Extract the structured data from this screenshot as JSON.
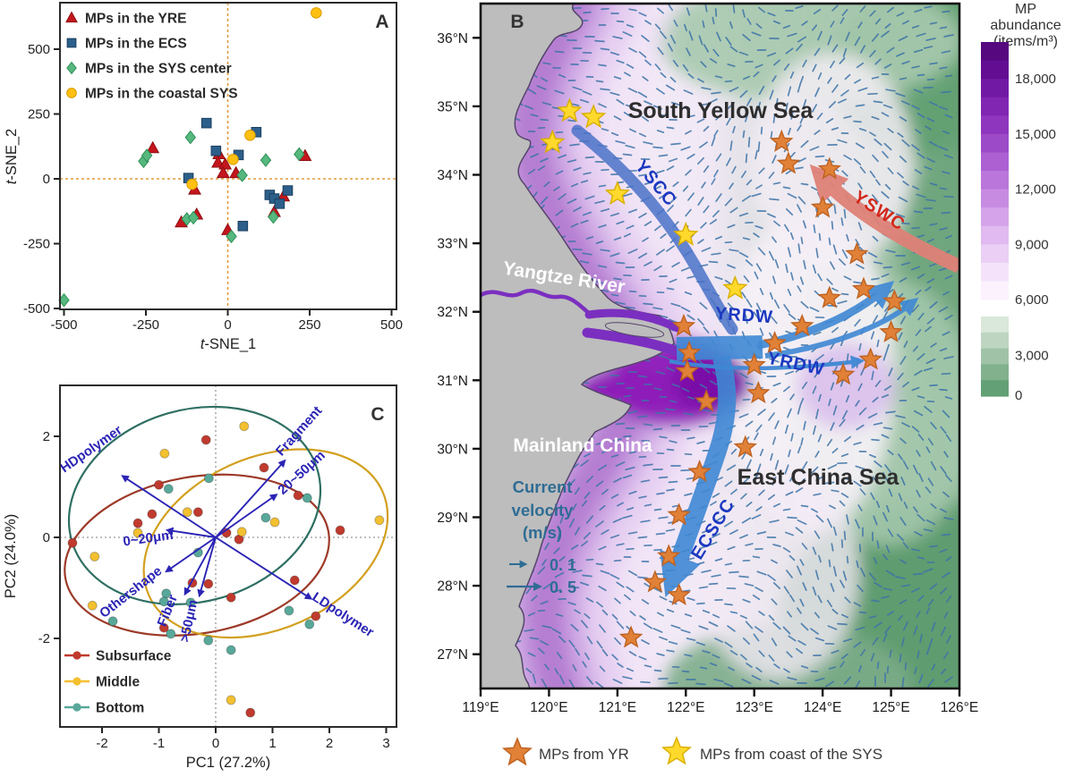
{
  "panels": {
    "a": "A",
    "b": "B",
    "c": "C"
  },
  "palette": {
    "axis": "#222222",
    "current_cold": "#3F88D4",
    "current_cold_band": "#4A72C8",
    "current_warm": "#DF8178",
    "current_label_cold": "#1C39C0",
    "current_label_warm": "#D3281C",
    "land": "#BDBDBD",
    "land_outline": "#55456B",
    "vector_field": "#3E74A8",
    "river": "#7B2FC0",
    "velocity_legend": "#2F6C94",
    "star_yr": "#E08137",
    "star_yr_edge": "#BE6222",
    "star_sys": "#FFD92B",
    "star_sys_edge": "#D9AE00",
    "sea_label": "#2E2E2E",
    "land_label": "#FFFFFF"
  },
  "chart_data": [
    {
      "id": "A",
      "type": "scatter",
      "xlabel": "t-SNE_1",
      "ylabel": "t-SNE_2",
      "xticks": [
        -500,
        -250,
        0,
        250,
        500
      ],
      "yticks": [
        500,
        250,
        0,
        -250,
        -500
      ],
      "reference_lines": {
        "x": 0,
        "y": 0,
        "style": "dashed",
        "color": "#E39A3B"
      },
      "series": [
        {
          "name": "MPs in the YRE",
          "marker": "triangle",
          "color": "#C4161C",
          "edge": "#8E0E13",
          "points": [
            [
              -229,
              118
            ],
            [
              -27,
              95
            ],
            [
              -30,
              62
            ],
            [
              -8,
              55
            ],
            [
              -14,
              22
            ],
            [
              25,
              22
            ],
            [
              -101,
              -42
            ],
            [
              -95,
              -138
            ],
            [
              -142,
              -168
            ],
            [
              0,
              -198
            ],
            [
              170,
              -68
            ],
            [
              142,
              -128
            ],
            [
              236,
              88
            ]
          ]
        },
        {
          "name": "MPs in the ECS",
          "marker": "square",
          "color": "#2C5F8A",
          "edge": "#1C3F60",
          "points": [
            [
              -65,
              215
            ],
            [
              -36,
              108
            ],
            [
              33,
              92
            ],
            [
              87,
              180
            ],
            [
              -120,
              3
            ],
            [
              128,
              -62
            ],
            [
              142,
              -76
            ],
            [
              158,
              -96
            ],
            [
              183,
              -45
            ],
            [
              46,
              -182
            ]
          ]
        },
        {
          "name": "MPs in the SYS center",
          "marker": "diamond",
          "color": "#56B87E",
          "edge": "#2F8F57",
          "points": [
            [
              -114,
              160
            ],
            [
              -257,
              68
            ],
            [
              -247,
              90
            ],
            [
              116,
              72
            ],
            [
              218,
              95
            ],
            [
              44,
              14
            ],
            [
              -125,
              -155
            ],
            [
              -105,
              -150
            ],
            [
              139,
              -147
            ],
            [
              11,
              -222
            ],
            [
              -500,
              -468
            ]
          ]
        },
        {
          "name": "MPs in the coastal SYS",
          "marker": "circle",
          "color": "#FFC011",
          "edge": "#D99C00",
          "points": [
            [
              270,
              640
            ],
            [
              68,
              168
            ],
            [
              16,
              75
            ],
            [
              -109,
              -21
            ]
          ]
        }
      ]
    },
    {
      "id": "B",
      "type": "map",
      "lon_range": [
        119,
        126
      ],
      "lat_range": [
        26.5,
        36.5
      ],
      "lon_ticks": [
        "119°E",
        "120°E",
        "121°E",
        "122°E",
        "123°E",
        "124°E",
        "125°E",
        "126°E"
      ],
      "lat_ticks": [
        "36°N",
        "35°N",
        "34°N",
        "33°N",
        "32°N",
        "31°N",
        "30°N",
        "29°N",
        "28°N",
        "27°N"
      ],
      "sea_labels": [
        {
          "text": "South Yellow Sea"
        },
        {
          "text": "East China Sea"
        }
      ],
      "land_labels": [
        {
          "text": "Mainland China"
        },
        {
          "text": "Yangtze River"
        }
      ],
      "currents": [
        {
          "name": "YSCC",
          "type": "cold"
        },
        {
          "name": "YSWC",
          "type": "warm"
        },
        {
          "name": "YRDW",
          "type": "cold"
        },
        {
          "name": "YRDW",
          "type": "cold"
        },
        {
          "name": "ECSCC",
          "type": "cold"
        }
      ],
      "velocity_legend": {
        "title_lines": [
          "Current",
          "velocity",
          "(m/s)"
        ],
        "items": [
          {
            "label": "0. 1"
          },
          {
            "label": "0. 5"
          }
        ]
      },
      "star_legend": [
        {
          "label": "MPs from YR"
        },
        {
          "label": "MPs from coast of the SYS"
        }
      ],
      "stars_yr_points": [
        [
          123.4,
          34.48
        ],
        [
          123.5,
          34.16
        ],
        [
          124.1,
          34.08
        ],
        [
          124.0,
          33.52
        ],
        [
          124.5,
          32.84
        ],
        [
          124.6,
          32.33
        ],
        [
          124.1,
          32.2
        ],
        [
          125.05,
          32.15
        ],
        [
          125.0,
          31.7
        ],
        [
          124.7,
          31.3
        ],
        [
          124.3,
          31.08
        ],
        [
          121.97,
          31.79
        ],
        [
          122.05,
          31.4
        ],
        [
          122.02,
          31.13
        ],
        [
          122.3,
          30.69
        ],
        [
          123.0,
          31.22
        ],
        [
          123.3,
          31.54
        ],
        [
          123.7,
          31.79
        ],
        [
          123.06,
          30.81
        ],
        [
          122.87,
          30.02
        ],
        [
          122.2,
          29.66
        ],
        [
          121.9,
          29.03
        ],
        [
          121.75,
          28.43
        ],
        [
          121.55,
          28.05
        ],
        [
          121.9,
          27.86
        ],
        [
          121.2,
          27.24
        ]
      ],
      "stars_sys_points": [
        [
          120.3,
          34.93
        ],
        [
          120.65,
          34.84
        ],
        [
          120.05,
          34.47
        ],
        [
          121.0,
          33.72
        ],
        [
          122.0,
          33.12
        ],
        [
          122.72,
          32.34
        ]
      ],
      "colorbar": {
        "title_lines": [
          "MP",
          "abundance",
          "(items/m³)"
        ],
        "purple_range": [
          6000,
          20000
        ],
        "purple_labels": [
          [
            18000,
            "18,000"
          ],
          [
            15000,
            "15,000"
          ],
          [
            12000,
            "12,000"
          ],
          [
            9000,
            "9,000"
          ],
          [
            6000,
            "6,000"
          ]
        ],
        "purple_colors": [
          "#56087E",
          "#630E92",
          "#7119A4",
          "#8026B2",
          "#8F36BE",
          "#9D4AC8",
          "#AC60D2",
          "#BA76DA",
          "#C78CE2",
          "#D4A3EA",
          "#E0BAF0",
          "#EBCFF5",
          "#F4E2FA",
          "#FBF2FD"
        ],
        "green_range": [
          0,
          6000
        ],
        "green_labels": [
          [
            3000,
            "3,000"
          ],
          [
            0,
            "0"
          ]
        ],
        "green_colors": [
          "#DAE7DB",
          "#BED5C2",
          "#A0C3A8",
          "#82B18E",
          "#63A075"
        ]
      }
    },
    {
      "id": "C",
      "type": "pca-biplot",
      "xlabel": "PC1 (27.2%)",
      "ylabel": "PC2 (24.0%)",
      "xticks": [
        -2,
        -1,
        0,
        1,
        2,
        3
      ],
      "yticks": [
        2,
        0,
        -2
      ],
      "arrow_color": "#2B24B4",
      "groups": [
        {
          "name": "Subsurface",
          "color": "#C03A2E",
          "ellipse_color": "#9C3A28",
          "ellipse": {
            "cx": -0.33,
            "cy": -0.35,
            "rx": 2.35,
            "ry": 1.55,
            "rotation": -10
          },
          "points": [
            [
              -0.17,
              1.93
            ],
            [
              0.85,
              1.38
            ],
            [
              -1.0,
              1.04
            ],
            [
              1.45,
              0.83
            ],
            [
              -0.31,
              0.5
            ],
            [
              -1.12,
              0.46
            ],
            [
              -1.37,
              0.28
            ],
            [
              2.19,
              0.14
            ],
            [
              -2.52,
              -0.11
            ],
            [
              0.41,
              -0.04
            ],
            [
              0.19,
              0.09
            ],
            [
              -0.41,
              -0.9
            ],
            [
              -0.13,
              -0.92
            ],
            [
              0.27,
              -1.19
            ],
            [
              1.39,
              -0.85
            ],
            [
              1.76,
              -1.56
            ],
            [
              -0.91,
              -1.79
            ],
            [
              0.61,
              -3.47
            ]
          ]
        },
        {
          "name": "Middle",
          "color": "#F3C030",
          "ellipse_color": "#D2A01F",
          "ellipse": {
            "cx": 0.88,
            "cy": -0.12,
            "rx": 2.25,
            "ry": 1.7,
            "rotation": -24
          },
          "points": [
            [
              0.5,
              2.2
            ],
            [
              -0.9,
              1.66
            ],
            [
              -0.5,
              0.5
            ],
            [
              -1.37,
              0.09
            ],
            [
              1.04,
              0.3
            ],
            [
              2.88,
              0.34
            ],
            [
              0.46,
              0.11
            ],
            [
              -2.13,
              -0.38
            ],
            [
              -2.17,
              -1.35
            ],
            [
              0.27,
              -3.22
            ]
          ]
        },
        {
          "name": "Bottom",
          "color": "#58A89A",
          "ellipse_color": "#2E6F63",
          "ellipse": {
            "cx": -0.37,
            "cy": 0.63,
            "rx": 2.25,
            "ry": 1.9,
            "rotation": -16
          },
          "points": [
            [
              -0.12,
              1.17
            ],
            [
              -0.83,
              0.96
            ],
            [
              1.61,
              0.78
            ],
            [
              0.88,
              0.39
            ],
            [
              -0.31,
              -0.3
            ],
            [
              -0.87,
              -1.11
            ],
            [
              -0.91,
              -1.27
            ],
            [
              -0.44,
              -1.29
            ],
            [
              -1.81,
              -1.66
            ],
            [
              1.29,
              -1.45
            ],
            [
              1.65,
              -1.72
            ],
            [
              -0.79,
              -1.91
            ],
            [
              -0.13,
              -2.04
            ],
            [
              0.27,
              -2.23
            ]
          ]
        }
      ],
      "loadings": [
        {
          "label": "HDpolymer",
          "x": -1.62,
          "y": 1.2,
          "lx": -2.15,
          "ly": 1.68,
          "rotation": -35
        },
        {
          "label": "Fragment",
          "x": 1.2,
          "y": 1.5,
          "lx": 1.52,
          "ly": 2.05,
          "rotation": -48
        },
        {
          "label": "20~50μm",
          "x": 1.05,
          "y": 0.83,
          "lx": 1.56,
          "ly": 1.22,
          "rotation": -42
        },
        {
          "label": "0~20μm",
          "x": -0.83,
          "y": 0.14,
          "lx": -1.18,
          "ly": -0.1,
          "rotation": -8
        },
        {
          "label": "Othershape",
          "x": -0.85,
          "y": -0.66,
          "lx": -1.45,
          "ly": -1.15,
          "rotation": -38
        },
        {
          "label": "Fiber",
          "x": -0.53,
          "y": -1.1,
          "lx": -0.78,
          "ly": -1.48,
          "rotation": -68
        },
        {
          "label": ">50μm",
          "x": -0.28,
          "y": -1.13,
          "lx": -0.4,
          "ly": -1.67,
          "rotation": -78
        },
        {
          "label": "LDpolymer",
          "x": 1.66,
          "y": -1.2,
          "lx": 2.2,
          "ly": -1.6,
          "rotation": 33
        }
      ]
    }
  ]
}
